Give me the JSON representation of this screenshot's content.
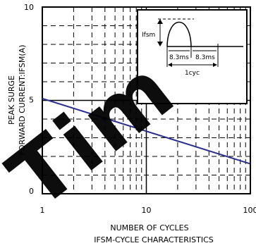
{
  "chart_data": {
    "type": "line",
    "title": "",
    "subtitle": "IFSM-CYCLE CHARACTERISTICS",
    "xlabel": "NUMBER OF CYCLES",
    "ylabel_lines": [
      "PEAK SURGE",
      "FORWARD CURRENT:IFSM(A)"
    ],
    "xscale": "log",
    "xlim": [
      1,
      100
    ],
    "ylim": [
      0,
      10
    ],
    "x_ticks": [
      "1",
      "10",
      "100"
    ],
    "y_ticks": [
      "0",
      "5",
      "10"
    ],
    "grid": true,
    "series": [
      {
        "x": [
          1,
          100
        ],
        "y": [
          5.1,
          1.6
        ]
      }
    ],
    "inset": {
      "ifsm_label": "Ifsm",
      "half_cycle_a": "8.3ms",
      "half_cycle_b": "8.3ms",
      "cycle_label": "1cyc"
    },
    "watermark": "Tim",
    "colors": {
      "line": "#2a2f8f",
      "watermark": "#1a1ee0",
      "grid": "#000000"
    }
  }
}
